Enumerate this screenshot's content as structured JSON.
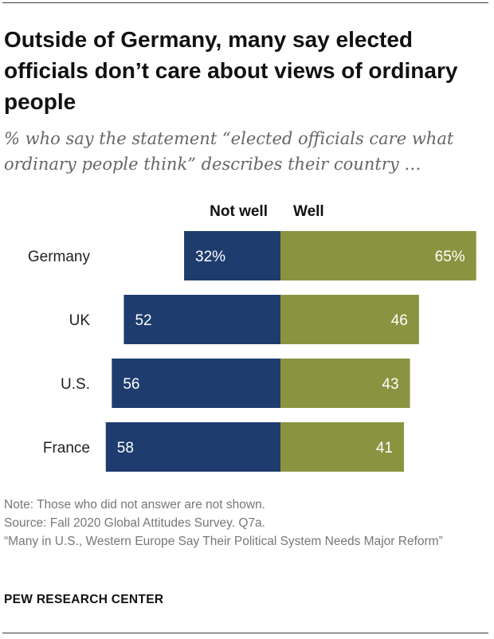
{
  "title": "Outside of Germany, many say elected officials don’t care about views of ordinary people",
  "subtitle": "% who say the statement “elected officials care what ordinary people think” describes their country …",
  "notes": {
    "note": "Note: Those who did not answer are not shown.",
    "source": "Source: Fall 2020 Global Attitudes Survey. Q7a.",
    "report": "“Many in U.S., Western Europe Say Their Political System Needs Major Reform”"
  },
  "brand": "PEW RESEARCH CENTER",
  "colors": {
    "not_well": "#1f3c6e",
    "well": "#8a9440",
    "label_on_bar": "#ffffff"
  },
  "chart_data": {
    "type": "bar",
    "orientation": "horizontal-diverging",
    "categories": [
      "Germany",
      "UK",
      "U.S.",
      "France"
    ],
    "series": [
      {
        "name": "Not well",
        "values": [
          32,
          52,
          56,
          58
        ],
        "labels": [
          "32%",
          "52",
          "56",
          "58"
        ]
      },
      {
        "name": "Well",
        "values": [
          65,
          46,
          43,
          41
        ],
        "labels": [
          "65%",
          "46",
          "43",
          "41"
        ]
      }
    ],
    "legend": "top",
    "grid": false
  }
}
